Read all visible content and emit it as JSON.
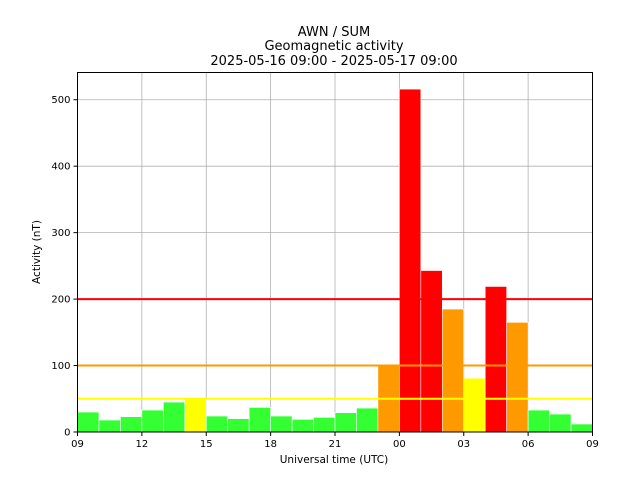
{
  "chart_data": {
    "type": "bar",
    "title": [
      "AWN / SUM",
      "Geomagnetic activity",
      "2025-05-16 09:00 - 2025-05-17 09:00"
    ],
    "xlabel": "Universal time (UTC)",
    "ylabel": "Activity (nT)",
    "xlim": [
      0,
      24
    ],
    "ylim": [
      0,
      541
    ],
    "x_ticks": [
      {
        "pos": 0,
        "label": "09"
      },
      {
        "pos": 3,
        "label": "12"
      },
      {
        "pos": 6,
        "label": "15"
      },
      {
        "pos": 9,
        "label": "18"
      },
      {
        "pos": 12,
        "label": "21"
      },
      {
        "pos": 15,
        "label": "00"
      },
      {
        "pos": 18,
        "label": "03"
      },
      {
        "pos": 21,
        "label": "06"
      },
      {
        "pos": 24,
        "label": "09"
      }
    ],
    "y_ticks": [
      0,
      100,
      200,
      300,
      400,
      500
    ],
    "grid": true,
    "bars": [
      {
        "start": "09:00",
        "value": 30,
        "color": "#33ff33"
      },
      {
        "start": "10:00",
        "value": 18,
        "color": "#33ff33"
      },
      {
        "start": "11:00",
        "value": 23,
        "color": "#33ff33"
      },
      {
        "start": "12:00",
        "value": 33,
        "color": "#33ff33"
      },
      {
        "start": "13:00",
        "value": 45,
        "color": "#33ff33"
      },
      {
        "start": "14:00",
        "value": 50,
        "color": "#ffff00"
      },
      {
        "start": "15:00",
        "value": 24,
        "color": "#33ff33"
      },
      {
        "start": "16:00",
        "value": 20,
        "color": "#33ff33"
      },
      {
        "start": "17:00",
        "value": 37,
        "color": "#33ff33"
      },
      {
        "start": "18:00",
        "value": 24,
        "color": "#33ff33"
      },
      {
        "start": "19:00",
        "value": 19,
        "color": "#33ff33"
      },
      {
        "start": "20:00",
        "value": 22,
        "color": "#33ff33"
      },
      {
        "start": "21:00",
        "value": 29,
        "color": "#33ff33"
      },
      {
        "start": "22:00",
        "value": 36,
        "color": "#33ff33"
      },
      {
        "start": "23:00",
        "value": 100,
        "color": "#ff9900"
      },
      {
        "start": "00:00",
        "value": 516,
        "color": "#ff0000"
      },
      {
        "start": "01:00",
        "value": 243,
        "color": "#ff0000"
      },
      {
        "start": "02:00",
        "value": 185,
        "color": "#ff9900"
      },
      {
        "start": "03:00",
        "value": 81,
        "color": "#ffff00"
      },
      {
        "start": "04:00",
        "value": 219,
        "color": "#ff0000"
      },
      {
        "start": "05:00",
        "value": 165,
        "color": "#ff9900"
      },
      {
        "start": "06:00",
        "value": 33,
        "color": "#33ff33"
      },
      {
        "start": "07:00",
        "value": 27,
        "color": "#33ff33"
      },
      {
        "start": "08:00",
        "value": 12,
        "color": "#33ff33"
      }
    ],
    "threshold_lines": [
      {
        "value": 50,
        "color": "#ffff00"
      },
      {
        "value": 100,
        "color": "#ff9900"
      },
      {
        "value": 200,
        "color": "#ff0000"
      }
    ]
  }
}
